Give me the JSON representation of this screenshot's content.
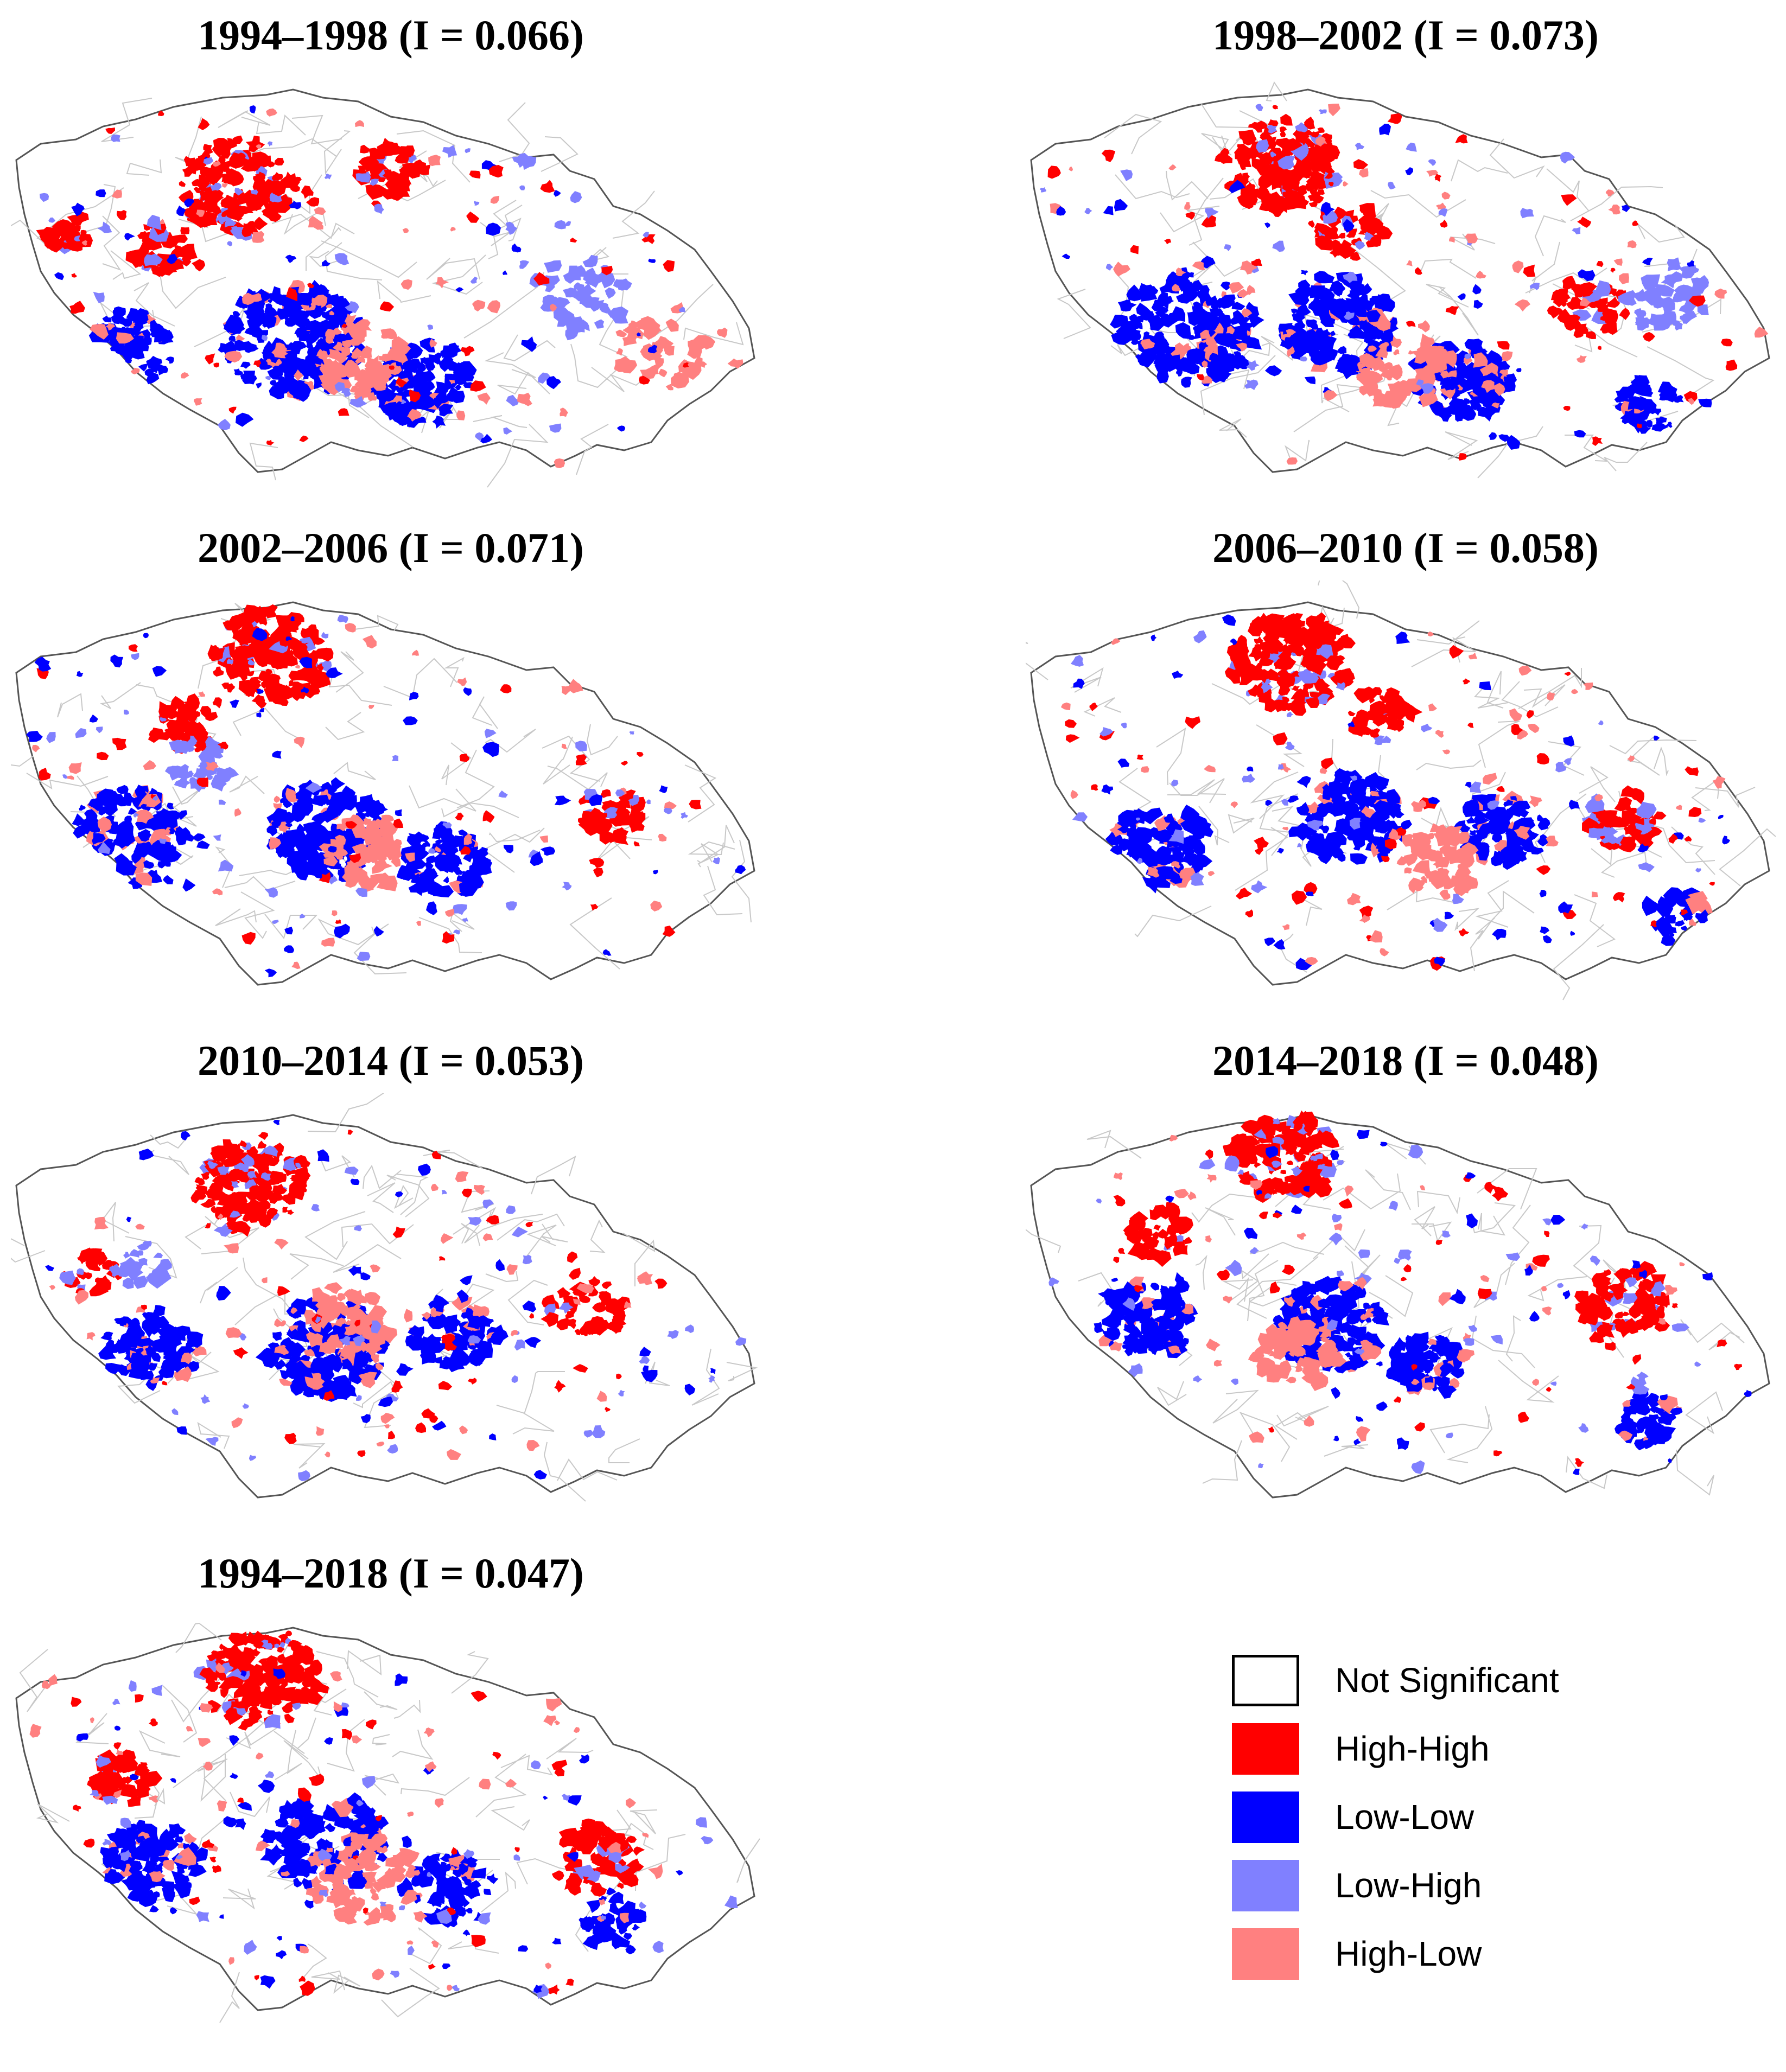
{
  "legend": {
    "items": [
      {
        "label": "Not Significant",
        "color": "#ffffff",
        "border": "#000000"
      },
      {
        "label": "High-High",
        "color": "#ff0000"
      },
      {
        "label": "Low-Low",
        "color": "#0000ff"
      },
      {
        "label": "Low-High",
        "color": "#8080ff"
      },
      {
        "label": "High-Low",
        "color": "#ff8080"
      }
    ]
  },
  "panels": [
    {
      "period": "1994–1998",
      "morans_i": "0.066",
      "title": "1994–1998 (I = 0.066)"
    },
    {
      "period": "1998–2002",
      "morans_i": "0.073",
      "title": "1998–2002 (I = 0.073)"
    },
    {
      "period": "2002–2006",
      "morans_i": "0.071",
      "title": "2002–2006 (I = 0.071)"
    },
    {
      "period": "2006–2010",
      "morans_i": "0.058",
      "title": "2006–2010 (I = 0.058)"
    },
    {
      "period": "2010–2014",
      "morans_i": "0.053",
      "title": "2010–2014 (I = 0.053)"
    },
    {
      "period": "2014–2018",
      "morans_i": "0.048",
      "title": "2014–2018 (I = 0.048)"
    },
    {
      "period": "1994–2018",
      "morans_i": "0.047",
      "title": "1994–2018 (I = 0.047)"
    }
  ]
}
